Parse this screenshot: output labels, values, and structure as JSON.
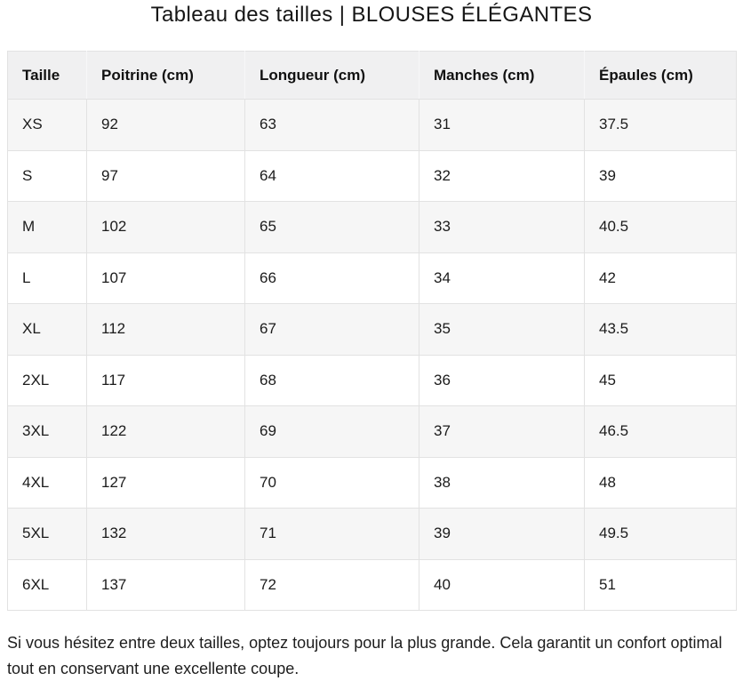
{
  "page": {
    "title": "Tableau des tailles | BLOUSES ÉLÉGANTES",
    "note": "Si vous hésitez entre deux tailles, optez toujours pour la plus grande. Cela garantit un confort optimal tout en conservant une excellente coupe."
  },
  "size_table": {
    "columns": [
      "Taille",
      "Poitrine (cm)",
      "Longueur (cm)",
      "Manches (cm)",
      "Épaules (cm)"
    ],
    "rows": [
      [
        "XS",
        "92",
        "63",
        "31",
        "37.5"
      ],
      [
        "S",
        "97",
        "64",
        "32",
        "39"
      ],
      [
        "M",
        "102",
        "65",
        "33",
        "40.5"
      ],
      [
        "L",
        "107",
        "66",
        "34",
        "42"
      ],
      [
        "XL",
        "112",
        "67",
        "35",
        "43.5"
      ],
      [
        "2XL",
        "117",
        "68",
        "36",
        "45"
      ],
      [
        "3XL",
        "122",
        "69",
        "37",
        "46.5"
      ],
      [
        "4XL",
        "127",
        "70",
        "38",
        "48"
      ],
      [
        "5XL",
        "132",
        "71",
        "39",
        "49.5"
      ],
      [
        "6XL",
        "137",
        "72",
        "40",
        "51"
      ]
    ]
  },
  "colors": {
    "header_bg": "#f0f0f1",
    "stripe_bg": "#f6f6f6",
    "border": "#e2e2e2",
    "text": "#1b1b1b",
    "background": "#ffffff"
  }
}
